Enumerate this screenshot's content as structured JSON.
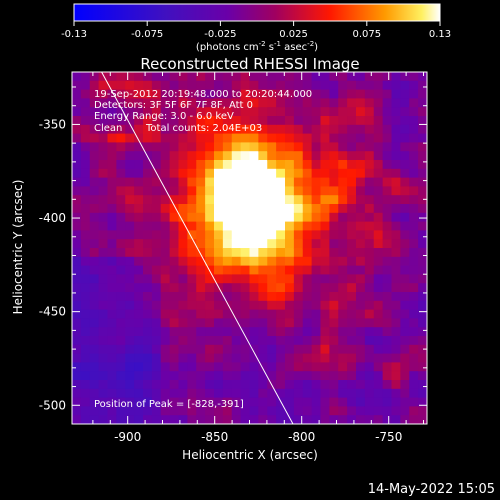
{
  "colorbar": {
    "ticks": [
      "-0.13",
      "-0.075",
      "-0.025",
      "0.025",
      "0.075",
      "0.13"
    ],
    "units_text": "(photons cm",
    "units_exp1": "-2",
    "units_mid": " s",
    "units_exp2": "-1",
    "units_mid2": " asec",
    "units_exp3": "-2",
    "units_end": ")",
    "range": [
      -0.13,
      0.13
    ]
  },
  "footer": {
    "timestamp": "14-May-2022 15:05"
  },
  "chart_data": {
    "type": "heatmap",
    "title": "Reconstructed RHESSI Image",
    "xlabel": "Heliocentric X (arcsec)",
    "ylabel": "Heliocentric Y (arcsec)",
    "xlim": [
      -932,
      -728
    ],
    "ylim": [
      -510,
      -322
    ],
    "x_ticks": [
      "-900",
      "-850",
      "-800",
      "-750"
    ],
    "y_ticks": [
      "-350",
      "-400",
      "-450",
      "-500"
    ],
    "annotations": {
      "time_range": "19-Sep-2012 20:19:48.000 to 20:20:44.000",
      "detectors": "Detectors: 3F 5F 6F 7F 8F, Att 0",
      "energy": "Energy Range: 3.0 - 6.0 keV",
      "clean": "Clean",
      "counts": "Total counts: 2.04E+03",
      "peak": "Position of Peak = [-828,-391]"
    },
    "peak_position": [
      -828,
      -391
    ],
    "limb_line": [
      [
        -915,
        -322
      ],
      [
        -805,
        -510
      ]
    ],
    "colors": {
      "low": "#0000ff",
      "mid": "#7a00b0",
      "high": "#ff0000",
      "max": "#ffffff"
    }
  }
}
